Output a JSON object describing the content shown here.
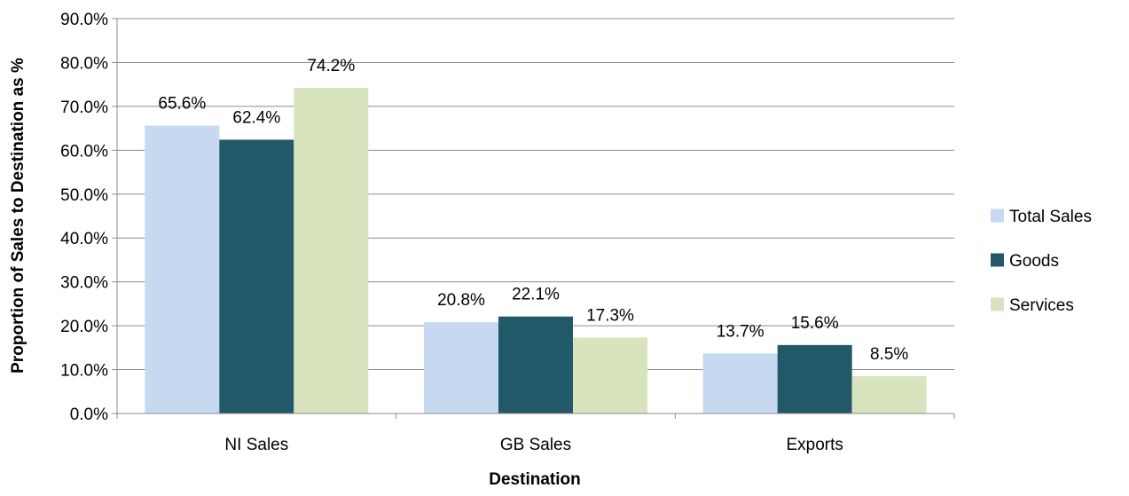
{
  "chart_data": {
    "type": "bar",
    "title": "",
    "xlabel": "Destination",
    "ylabel": "Proportion of Sales to Destination  as %",
    "categories": [
      "NI Sales",
      "GB Sales",
      "Exports"
    ],
    "series": [
      {
        "name": "Total Sales",
        "values": [
          65.6,
          20.8,
          13.7
        ],
        "labels": [
          "65.6%",
          "20.8%",
          "13.7%"
        ],
        "color": "#c6d9f1"
      },
      {
        "name": "Goods",
        "values": [
          62.4,
          22.1,
          15.6
        ],
        "labels": [
          "62.4%",
          "22.1%",
          "15.6%"
        ],
        "color": "#215968"
      },
      {
        "name": "Services",
        "values": [
          74.2,
          17.3,
          8.5
        ],
        "labels": [
          "74.2%",
          "17.3%",
          "8.5%"
        ],
        "color": "#d7e4bd"
      }
    ],
    "ylim": [
      0,
      90
    ],
    "yticks": [
      0,
      10,
      20,
      30,
      40,
      50,
      60,
      70,
      80,
      90
    ],
    "ytick_labels": [
      "0.0%",
      "10.0%",
      "20.0%",
      "30.0%",
      "40.0%",
      "50.0%",
      "60.0%",
      "70.0%",
      "80.0%",
      "90.0%"
    ],
    "grid": true,
    "legend_position": "right"
  }
}
